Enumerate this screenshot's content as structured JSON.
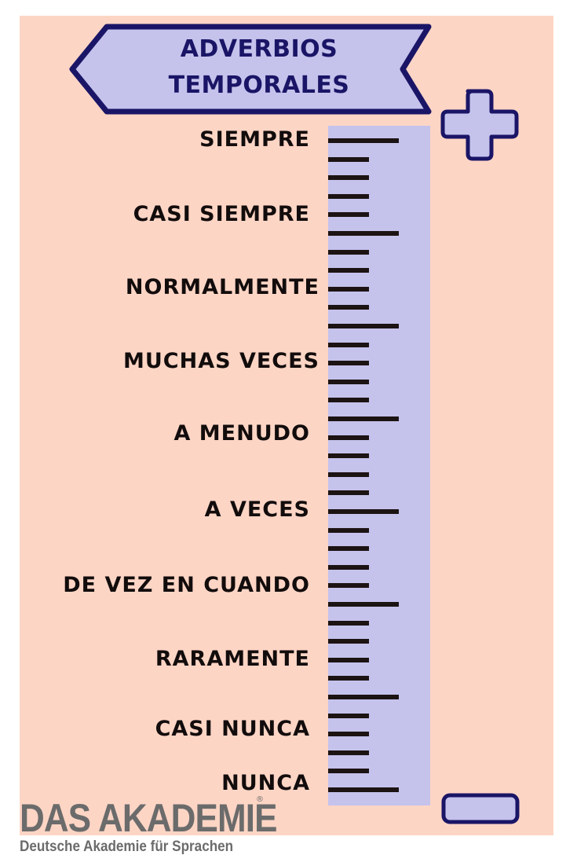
{
  "title": {
    "line1": "ADVERBIOS",
    "line2": "TEMPORALES"
  },
  "colors": {
    "background": "#fdd5c5",
    "banner_fill": "#c5c3ec",
    "outline": "#1a1566",
    "scale_fill": "#c5c3ec",
    "tick": "#1c1313",
    "text": "#120c0c"
  },
  "scale_icons": {
    "top": "plus-icon",
    "bottom": "minus-icon"
  },
  "adverbs": [
    "SIEMPRE",
    "CASI SIEMPRE",
    "NORMALMENTE",
    "MUCHAS VECES",
    "A MENUDO",
    "A VECES",
    "DE VEZ EN CUANDO",
    "RARAMENTE",
    "CASI NUNCA",
    "NUNCA"
  ],
  "branding": {
    "name": "DAS AKADEMIE",
    "registered": "®",
    "tagline": "Deutsche Akademie für Sprachen"
  }
}
